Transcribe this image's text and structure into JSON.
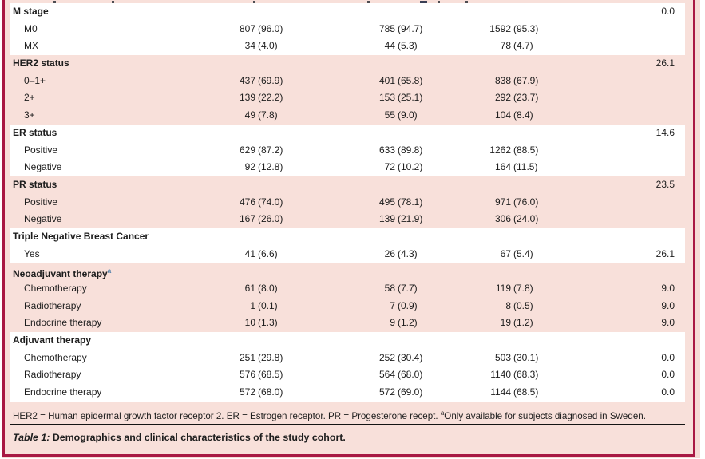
{
  "colors": {
    "frame_border": "#A81843",
    "panel_pink": "#F8E0DA",
    "row_white": "#FFFFFF",
    "rule_black": "#141414"
  },
  "table": {
    "groups": [
      {
        "name": "M stage",
        "sup": "",
        "missing": "0.0",
        "bg": "white",
        "rows": [
          {
            "label": "M0",
            "n1": "807",
            "p1": "(96.0)",
            "n2": "785",
            "p2": "(94.7)",
            "n3": "1592",
            "p3": "(95.3)",
            "missing": ""
          },
          {
            "label": "MX",
            "n1": "34",
            "p1": "(4.0)",
            "n2": "44",
            "p2": "(5.3)",
            "n3": "78",
            "p3": "(4.7)",
            "missing": ""
          }
        ]
      },
      {
        "name": "HER2 status",
        "sup": "",
        "missing": "26.1",
        "bg": "pink",
        "rows": [
          {
            "label": "0–1+",
            "n1": "437",
            "p1": "(69.9)",
            "n2": "401",
            "p2": "(65.8)",
            "n3": "838",
            "p3": "(67.9)",
            "missing": ""
          },
          {
            "label": "2+",
            "n1": "139",
            "p1": "(22.2)",
            "n2": "153",
            "p2": "(25.1)",
            "n3": "292",
            "p3": "(23.7)",
            "missing": ""
          },
          {
            "label": "3+",
            "n1": "49",
            "p1": "(7.8)",
            "n2": "55",
            "p2": "(9.0)",
            "n3": "104",
            "p3": "(8.4)",
            "missing": ""
          }
        ]
      },
      {
        "name": "ER status",
        "sup": "",
        "missing": "14.6",
        "bg": "white",
        "rows": [
          {
            "label": "Positive",
            "n1": "629",
            "p1": "(87.2)",
            "n2": "633",
            "p2": "(89.8)",
            "n3": "1262",
            "p3": "(88.5)",
            "missing": ""
          },
          {
            "label": "Negative",
            "n1": "92",
            "p1": "(12.8)",
            "n2": "72",
            "p2": "(10.2)",
            "n3": "164",
            "p3": "(11.5)",
            "missing": ""
          }
        ]
      },
      {
        "name": "PR status",
        "sup": "",
        "missing": "23.5",
        "bg": "pink",
        "rows": [
          {
            "label": "Positive",
            "n1": "476",
            "p1": "(74.0)",
            "n2": "495",
            "p2": "(78.1)",
            "n3": "971",
            "p3": "(76.0)",
            "missing": ""
          },
          {
            "label": "Negative",
            "n1": "167",
            "p1": "(26.0)",
            "n2": "139",
            "p2": "(21.9)",
            "n3": "306",
            "p3": "(24.0)",
            "missing": ""
          }
        ]
      },
      {
        "name": "Triple Negative Breast Cancer",
        "sup": "",
        "missing": "",
        "bg": "white",
        "rows": [
          {
            "label": "Yes",
            "n1": "41",
            "p1": "(6.6)",
            "n2": "26",
            "p2": "(4.3)",
            "n3": "67",
            "p3": "(5.4)",
            "missing": "26.1"
          }
        ]
      },
      {
        "name": "Neoadjuvant therapy",
        "sup": "a",
        "missing": "",
        "bg": "pink",
        "rows": [
          {
            "label": "Chemotherapy",
            "n1": "61",
            "p1": "(8.0)",
            "n2": "58",
            "p2": "(7.7)",
            "n3": "119",
            "p3": "(7.8)",
            "missing": "9.0"
          },
          {
            "label": "Radiotherapy",
            "n1": "1",
            "p1": "(0.1)",
            "n2": "7",
            "p2": "(0.9)",
            "n3": "8",
            "p3": "(0.5)",
            "missing": "9.0"
          },
          {
            "label": "Endocrine therapy",
            "n1": "10",
            "p1": "(1.3)",
            "n2": "9",
            "p2": "(1.2)",
            "n3": "19",
            "p3": "(1.2)",
            "missing": "9.0"
          }
        ]
      },
      {
        "name": "Adjuvant therapy",
        "sup": "",
        "missing": "",
        "bg": "white",
        "rows": [
          {
            "label": "Chemotherapy",
            "n1": "251",
            "p1": "(29.8)",
            "n2": "252",
            "p2": "(30.4)",
            "n3": "503",
            "p3": "(30.1)",
            "missing": "0.0"
          },
          {
            "label": "Radiotherapy",
            "n1": "576",
            "p1": "(68.5)",
            "n2": "564",
            "p2": "(68.0)",
            "n3": "1140",
            "p3": "(68.3)",
            "missing": "0.0"
          },
          {
            "label": "Endocrine therapy",
            "n1": "572",
            "p1": "(68.0)",
            "n2": "572",
            "p2": "(69.0)",
            "n3": "1144",
            "p3": "(68.5)",
            "missing": "0.0"
          }
        ]
      }
    ],
    "footnote": {
      "abbrev": "HER2 = Human epidermal growth factor receptor 2. ER = Estrogen receptor. PR = Progesterone recept. ",
      "sup": "a",
      "note": "Only available for subjects diagnosed in Sweden."
    },
    "caption": {
      "label": "Table 1:",
      "text": "Demographics and clinical characteristics of the study cohort."
    }
  }
}
